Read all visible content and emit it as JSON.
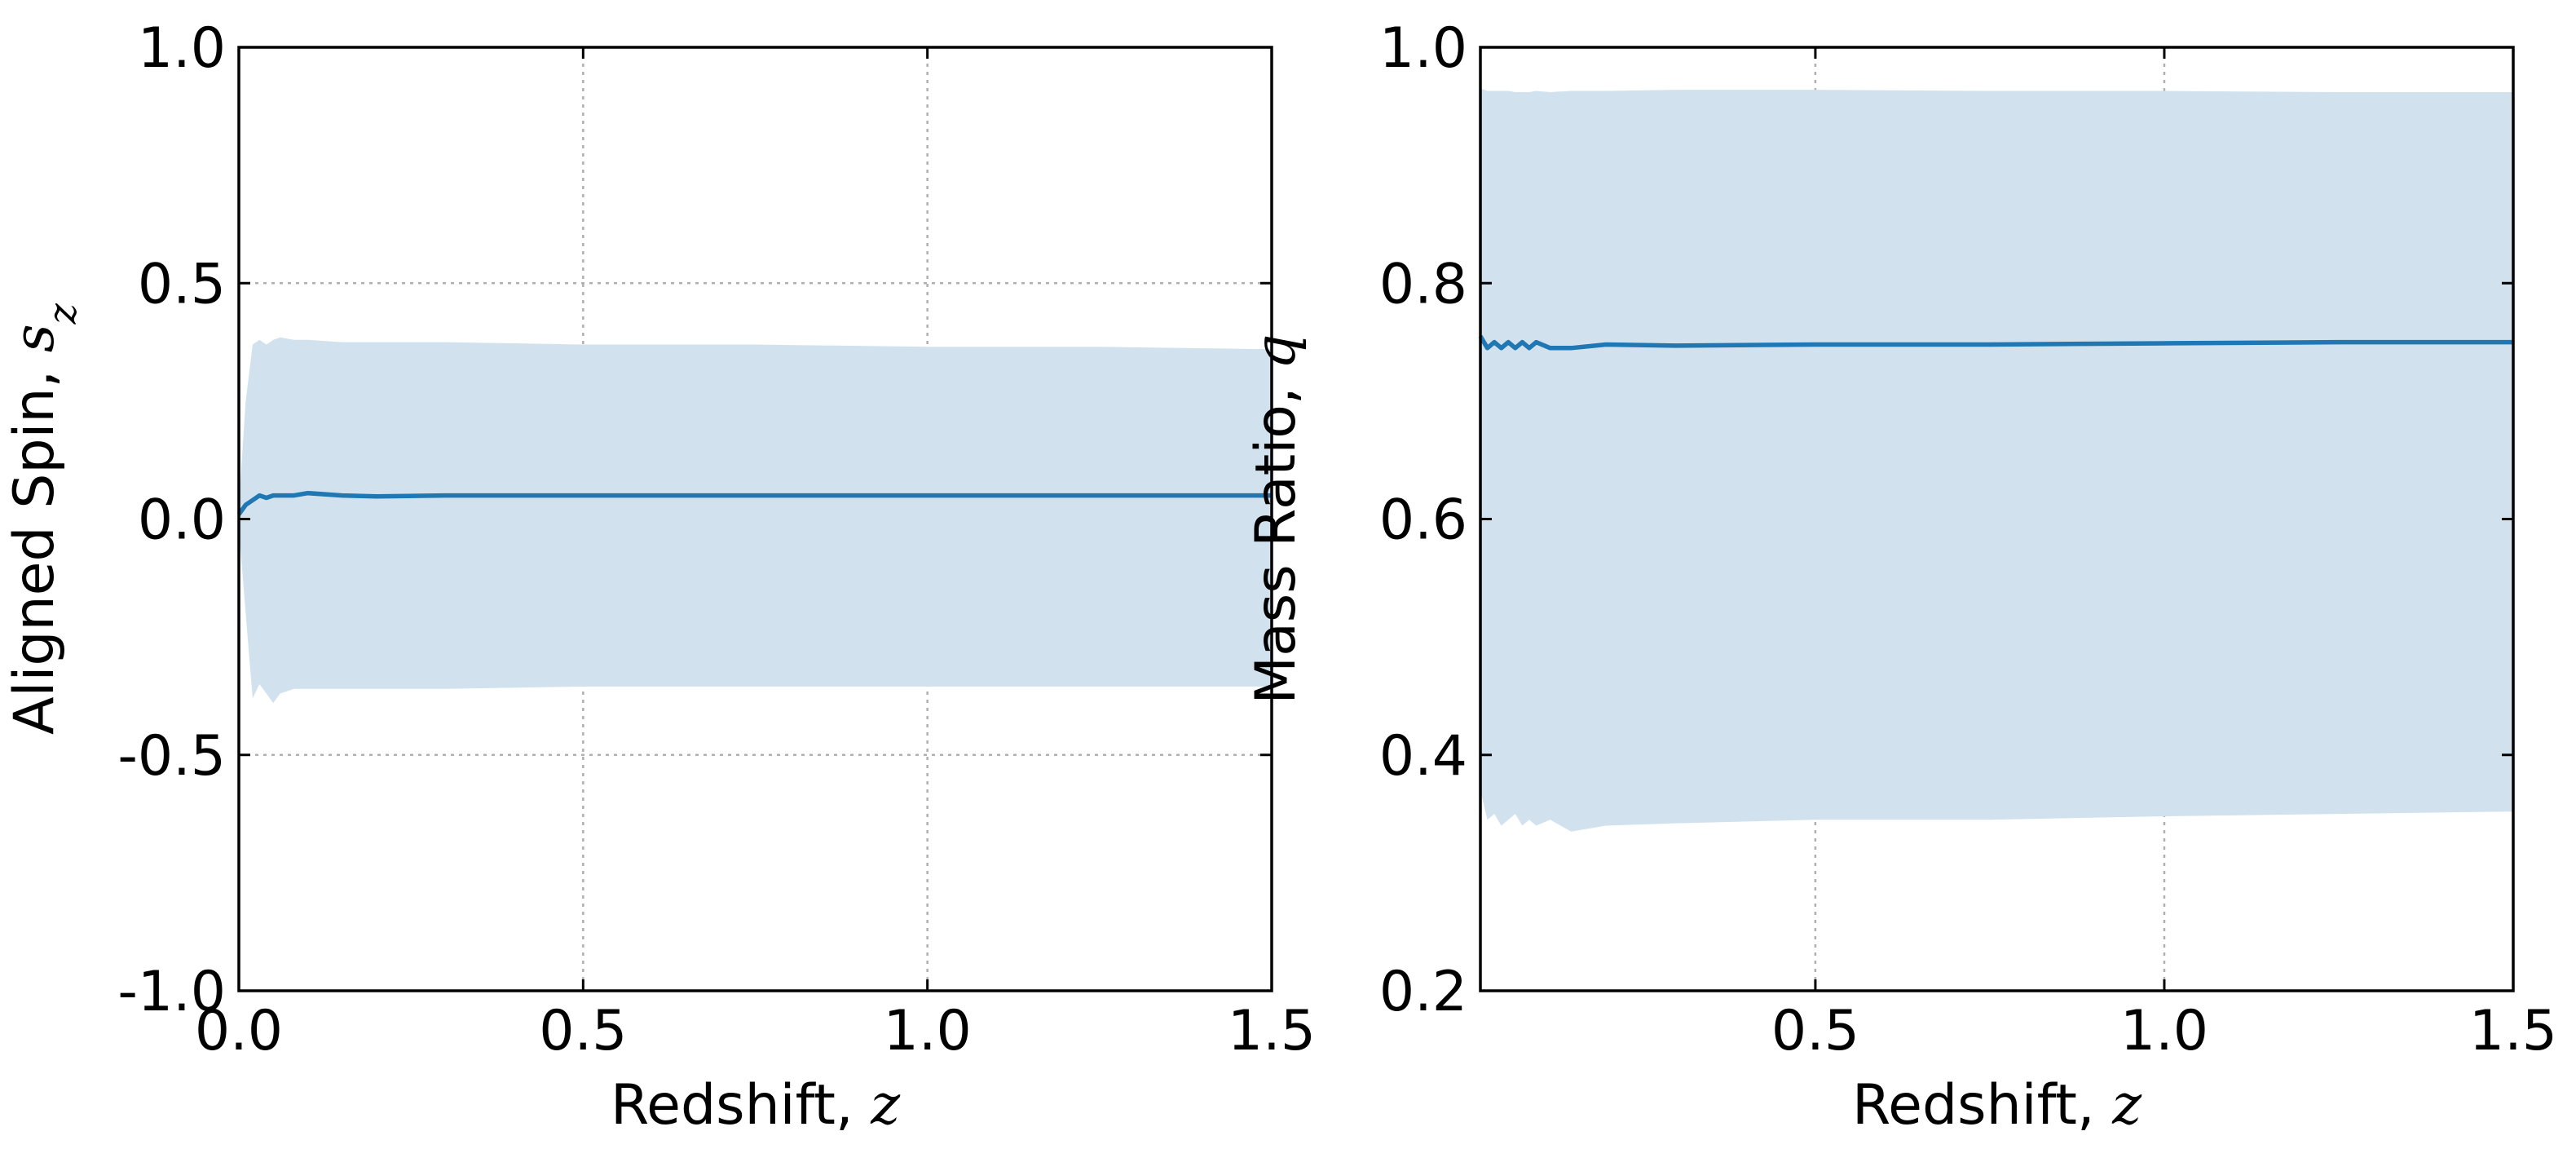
{
  "chart_data": [
    {
      "type": "line",
      "xlabel": "Redshift, ",
      "xlabel_symbol": "z",
      "ylabel": "Aligned Spin, ",
      "ylabel_symbol": "s",
      "ylabel_subscript": "z",
      "xlim": [
        0.0,
        1.5
      ],
      "ylim": [
        -1.0,
        1.0
      ],
      "xticks": [
        0.0,
        0.5,
        1.0,
        1.5
      ],
      "xtick_labels": [
        "0.0",
        "0.5",
        "1.0",
        "1.5"
      ],
      "yticks": [
        -1.0,
        -0.5,
        0.0,
        0.5,
        1.0
      ],
      "ytick_labels": [
        "-1.0",
        "-0.5",
        "0.0",
        "0.5",
        "1.0"
      ],
      "grid": true,
      "colors": {
        "line": "#1f77b4",
        "band": "#d1e2ee"
      },
      "series": [
        {
          "type": "line",
          "x": [
            0.0,
            0.01,
            0.02,
            0.03,
            0.04,
            0.05,
            0.06,
            0.08,
            0.1,
            0.15,
            0.2,
            0.3,
            0.5,
            0.75,
            1.0,
            1.25,
            1.5
          ],
          "values": [
            0.01,
            0.03,
            0.04,
            0.05,
            0.045,
            0.05,
            0.05,
            0.05,
            0.055,
            0.05,
            0.048,
            0.05,
            0.05,
            0.05,
            0.05,
            0.05,
            0.05
          ]
        },
        {
          "type": "band",
          "x": [
            0.0,
            0.01,
            0.02,
            0.03,
            0.04,
            0.05,
            0.06,
            0.08,
            0.1,
            0.15,
            0.2,
            0.3,
            0.5,
            0.75,
            1.0,
            1.25,
            1.5
          ],
          "upper": [
            0.03,
            0.25,
            0.37,
            0.38,
            0.37,
            0.38,
            0.385,
            0.38,
            0.38,
            0.375,
            0.375,
            0.375,
            0.37,
            0.37,
            0.365,
            0.365,
            0.36
          ],
          "lower": [
            -0.02,
            -0.2,
            -0.38,
            -0.35,
            -0.37,
            -0.39,
            -0.37,
            -0.36,
            -0.36,
            -0.36,
            -0.36,
            -0.36,
            -0.355,
            -0.355,
            -0.355,
            -0.355,
            -0.355
          ]
        }
      ]
    },
    {
      "type": "line",
      "xlabel": "Redshift, ",
      "xlabel_symbol": "z",
      "ylabel": "Mass Ratio, ",
      "ylabel_symbol": "q",
      "xlim": [
        0.02,
        1.5
      ],
      "ylim": [
        0.2,
        1.0
      ],
      "xticks": [
        0.5,
        1.0,
        1.5
      ],
      "xtick_labels": [
        "0.5",
        "1.0",
        "1.5"
      ],
      "yticks": [
        0.2,
        0.4,
        0.6,
        0.8,
        1.0
      ],
      "ytick_labels": [
        "0.2",
        "0.4",
        "0.6",
        "0.8",
        "1.0"
      ],
      "grid": true,
      "colors": {
        "line": "#1f77b4",
        "band": "#d1e2ee"
      },
      "series": [
        {
          "type": "line",
          "x": [
            0.02,
            0.03,
            0.04,
            0.05,
            0.06,
            0.07,
            0.08,
            0.09,
            0.1,
            0.12,
            0.15,
            0.2,
            0.3,
            0.5,
            0.75,
            1.0,
            1.25,
            1.5
          ],
          "values": [
            0.755,
            0.745,
            0.75,
            0.745,
            0.75,
            0.745,
            0.75,
            0.745,
            0.75,
            0.745,
            0.745,
            0.748,
            0.747,
            0.748,
            0.748,
            0.749,
            0.75,
            0.75
          ]
        },
        {
          "type": "band",
          "x": [
            0.02,
            0.03,
            0.04,
            0.05,
            0.06,
            0.07,
            0.08,
            0.09,
            0.1,
            0.12,
            0.15,
            0.2,
            0.3,
            0.5,
            0.75,
            1.0,
            1.25,
            1.5
          ],
          "upper": [
            0.965,
            0.963,
            0.963,
            0.963,
            0.963,
            0.962,
            0.962,
            0.962,
            0.963,
            0.962,
            0.963,
            0.963,
            0.964,
            0.964,
            0.963,
            0.963,
            0.962,
            0.962
          ],
          "lower": [
            0.37,
            0.345,
            0.35,
            0.34,
            0.345,
            0.35,
            0.34,
            0.345,
            0.34,
            0.345,
            0.335,
            0.34,
            0.342,
            0.345,
            0.345,
            0.348,
            0.35,
            0.352
          ]
        }
      ]
    }
  ]
}
